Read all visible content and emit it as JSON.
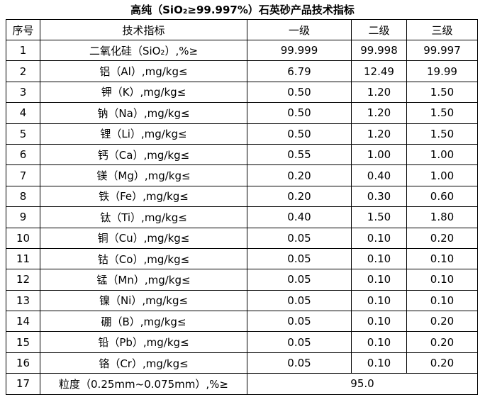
{
  "title": "高纯（SiO₂≥99.997%）石英砂产品技术指标",
  "headers": {
    "no": "序号",
    "item": "技术指标",
    "grade1": "一级",
    "grade2": "二级",
    "grade3": "三级"
  },
  "rows": [
    {
      "no": "1",
      "item": "二氧化硅（SiO₂）,%≥",
      "g1": "99.999",
      "g2": "99.998",
      "g3": "99.997"
    },
    {
      "no": "2",
      "item": "铝（Al）,mg/kg≤",
      "g1": "6.79",
      "g2": "12.49",
      "g3": "19.99"
    },
    {
      "no": "3",
      "item": "钾（K）,mg/kg≤",
      "g1": "0.50",
      "g2": "1.20",
      "g3": "1.50"
    },
    {
      "no": "4",
      "item": "钠（Na）,mg/kg≤",
      "g1": "0.50",
      "g2": "1.20",
      "g3": "1.50"
    },
    {
      "no": "5",
      "item": "锂（Li）,mg/kg≤",
      "g1": "0.50",
      "g2": "1.20",
      "g3": "1.50"
    },
    {
      "no": "6",
      "item": "钙（Ca）,mg/kg≤",
      "g1": "0.55",
      "g2": "1.00",
      "g3": "1.00"
    },
    {
      "no": "7",
      "item": "镁（Mg）,mg/kg≤",
      "g1": "0.20",
      "g2": "0.40",
      "g3": "1.00"
    },
    {
      "no": "8",
      "item": "铁（Fe）,mg/kg≤",
      "g1": "0.20",
      "g2": "0.30",
      "g3": "0.60"
    },
    {
      "no": "9",
      "item": "钛（Ti）,mg/kg≤",
      "g1": "0.40",
      "g2": "1.50",
      "g3": "1.80"
    },
    {
      "no": "10",
      "item": "铜（Cu）,mg/kg≤",
      "g1": "0.05",
      "g2": "0.10",
      "g3": "0.20"
    },
    {
      "no": "11",
      "item": "钴（Co）,mg/kg≤",
      "g1": "0.05",
      "g2": "0.10",
      "g3": "0.10"
    },
    {
      "no": "12",
      "item": "锰（Mn）,mg/kg≤",
      "g1": "0.05",
      "g2": "0.10",
      "g3": "0.10"
    },
    {
      "no": "13",
      "item": "镍（Ni）,mg/kg≤",
      "g1": "0.05",
      "g2": "0.10",
      "g3": "0.10"
    },
    {
      "no": "14",
      "item": "硼（B）,mg/kg≤",
      "g1": "0.05",
      "g2": "0.10",
      "g3": "0.20"
    },
    {
      "no": "15",
      "item": "铅（Pb）,mg/kg≤",
      "g1": "0.05",
      "g2": "0.10",
      "g3": "0.20"
    },
    {
      "no": "16",
      "item": "铬（Cr）,mg/kg≤",
      "g1": "0.05",
      "g2": "0.10",
      "g3": "0.20"
    }
  ],
  "last_row": {
    "no": "17",
    "item": "粒度（0.25mm~0.075mm）,%≥",
    "value": "95.0"
  }
}
